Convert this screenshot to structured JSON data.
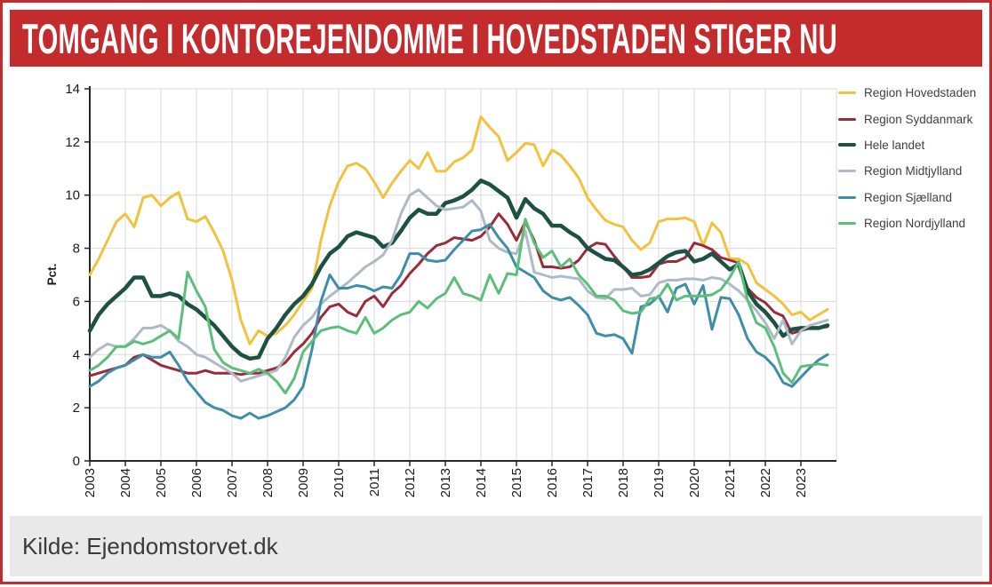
{
  "banner": {
    "title": "TOMGANG I KONTOREJENDOMME I HOVEDSTADEN STIGER NU"
  },
  "source": {
    "label": "Kilde: Ejendomstorvet.dk"
  },
  "colors": {
    "banner_red": "#C32B2D",
    "frame_border": "#C32B2D",
    "axis": "#262626",
    "grid": "#DADADA",
    "source_bar_bg": "#E9E9E9"
  },
  "chart_data": {
    "type": "line",
    "title": "",
    "xlabel": "",
    "ylabel": "Pct.",
    "ylim": [
      0,
      14
    ],
    "y_ticks": [
      0,
      2,
      4,
      6,
      8,
      10,
      12,
      14
    ],
    "grid": true,
    "legend_position": "right",
    "x_start": 2003,
    "x_step": 0.25,
    "x_end": 2023.75,
    "x_tick_years": [
      "2003",
      "2004",
      "2005",
      "2006",
      "2007",
      "2008",
      "2009",
      "2010",
      "2011",
      "2012",
      "2013",
      "2014",
      "2015",
      "2016",
      "2017",
      "2018",
      "2019",
      "2020",
      "2021",
      "2022",
      "2023"
    ],
    "series": [
      {
        "name": "Region Hovedstaden",
        "color": "#F2C23E",
        "width": 3,
        "values": [
          7.0,
          7.6,
          8.3,
          9.0,
          9.3,
          8.8,
          9.9,
          10.0,
          9.6,
          9.9,
          10.1,
          9.1,
          9.0,
          9.2,
          8.6,
          7.9,
          6.8,
          5.3,
          4.4,
          4.9,
          4.7,
          4.8,
          5.1,
          5.5,
          6.0,
          6.5,
          8.3,
          9.6,
          10.5,
          11.1,
          11.2,
          11.0,
          10.5,
          9.9,
          10.45,
          10.9,
          11.3,
          11.0,
          11.6,
          10.9,
          10.9,
          11.25,
          11.4,
          11.7,
          12.95,
          12.55,
          12.2,
          11.3,
          11.6,
          11.95,
          11.9,
          11.1,
          11.7,
          11.5,
          11.1,
          10.65,
          9.9,
          9.45,
          9.05,
          8.9,
          8.8,
          8.3,
          7.95,
          8.2,
          9.0,
          9.1,
          9.1,
          9.15,
          9.0,
          8.1,
          8.95,
          8.6,
          7.6,
          7.6,
          7.4,
          6.7,
          6.45,
          6.2,
          5.9,
          5.5,
          5.6,
          5.3,
          5.5,
          5.7
        ]
      },
      {
        "name": "Region Syddanmark",
        "color": "#992B3B",
        "width": 3,
        "values": [
          3.2,
          3.3,
          3.4,
          3.5,
          3.6,
          3.9,
          4.0,
          3.8,
          3.6,
          3.5,
          3.4,
          3.3,
          3.3,
          3.4,
          3.3,
          3.3,
          3.3,
          3.25,
          3.3,
          3.3,
          3.4,
          3.5,
          3.7,
          4.1,
          4.4,
          4.8,
          5.4,
          5.8,
          5.9,
          5.6,
          5.45,
          6.0,
          6.2,
          5.8,
          6.3,
          6.6,
          7.05,
          7.4,
          7.8,
          8.1,
          8.2,
          8.4,
          8.35,
          8.3,
          8.45,
          8.8,
          9.3,
          8.9,
          8.3,
          9.0,
          8.3,
          7.3,
          7.3,
          7.25,
          7.3,
          7.55,
          8.0,
          8.2,
          8.15,
          7.7,
          7.3,
          6.9,
          6.9,
          6.95,
          7.4,
          7.5,
          7.5,
          7.65,
          8.2,
          8.1,
          7.95,
          7.65,
          7.55,
          7.45,
          6.5,
          6.15,
          5.95,
          5.6,
          5.45,
          4.8,
          4.9,
          5.0,
          5.0,
          5.05
        ]
      },
      {
        "name": "Hele landet",
        "color": "#1C5143",
        "width": 4.5,
        "values": [
          4.9,
          5.5,
          5.9,
          6.2,
          6.5,
          6.9,
          6.9,
          6.2,
          6.2,
          6.3,
          6.2,
          5.9,
          5.7,
          5.4,
          5.1,
          4.7,
          4.3,
          4.0,
          3.85,
          3.9,
          4.6,
          5.0,
          5.5,
          5.9,
          6.2,
          6.65,
          7.3,
          7.8,
          8.05,
          8.45,
          8.6,
          8.5,
          8.4,
          8.05,
          8.2,
          8.65,
          9.15,
          9.45,
          9.3,
          9.3,
          9.7,
          9.8,
          9.95,
          10.2,
          10.55,
          10.4,
          10.15,
          9.9,
          9.15,
          9.85,
          9.5,
          9.3,
          8.85,
          8.85,
          8.6,
          8.4,
          8.0,
          7.8,
          7.6,
          7.55,
          7.3,
          7.0,
          7.05,
          7.2,
          7.45,
          7.7,
          7.85,
          7.9,
          7.5,
          7.6,
          7.8,
          7.5,
          7.2,
          7.4,
          6.4,
          5.9,
          5.6,
          5.2,
          4.7,
          4.95,
          5.0,
          5.0,
          5.0,
          5.1
        ]
      },
      {
        "name": "Region Midtjylland",
        "color": "#AFBAC6",
        "width": 3,
        "values": [
          3.9,
          4.2,
          4.4,
          4.3,
          4.3,
          4.6,
          5.0,
          5.0,
          5.1,
          4.9,
          4.5,
          4.3,
          4.0,
          3.9,
          3.7,
          3.5,
          3.3,
          3.0,
          3.1,
          3.2,
          3.3,
          3.4,
          3.9,
          4.65,
          5.1,
          5.4,
          5.9,
          6.2,
          6.45,
          6.7,
          7.0,
          7.3,
          7.5,
          7.75,
          8.3,
          9.3,
          10.0,
          10.2,
          9.9,
          9.6,
          9.45,
          9.5,
          9.55,
          9.8,
          9.4,
          8.3,
          8.0,
          7.85,
          7.8,
          8.65,
          7.1,
          7.0,
          6.9,
          6.95,
          6.9,
          6.85,
          6.4,
          6.15,
          6.1,
          6.45,
          6.45,
          6.5,
          6.2,
          6.25,
          6.7,
          6.8,
          6.8,
          6.85,
          6.85,
          6.8,
          6.9,
          6.85,
          6.65,
          6.4,
          6.05,
          5.65,
          5.2,
          4.6,
          5.3,
          4.4,
          4.9,
          5.1,
          5.2,
          5.3
        ]
      },
      {
        "name": "Region Sjælland",
        "color": "#3F8EA9",
        "width": 3,
        "values": [
          2.8,
          3.0,
          3.3,
          3.5,
          3.6,
          3.8,
          4.0,
          3.9,
          3.9,
          4.1,
          3.6,
          3.0,
          2.6,
          2.2,
          2.0,
          1.9,
          1.7,
          1.6,
          1.8,
          1.6,
          1.7,
          1.85,
          2.0,
          2.3,
          2.8,
          4.2,
          6.0,
          7.0,
          6.5,
          6.5,
          6.6,
          6.55,
          6.4,
          6.55,
          6.5,
          7.0,
          7.8,
          7.8,
          7.55,
          7.5,
          7.55,
          7.95,
          8.3,
          8.65,
          8.7,
          8.9,
          8.4,
          8.0,
          7.3,
          7.1,
          6.9,
          6.4,
          6.15,
          6.05,
          6.15,
          5.85,
          5.5,
          4.8,
          4.7,
          4.75,
          4.6,
          4.05,
          5.8,
          5.9,
          6.2,
          5.6,
          6.5,
          6.65,
          5.9,
          6.6,
          4.95,
          6.15,
          6.1,
          5.5,
          4.6,
          4.1,
          3.9,
          3.55,
          2.95,
          2.8,
          3.15,
          3.5,
          3.8,
          4.0
        ]
      },
      {
        "name": "Region Nordjylland",
        "color": "#5CBE7B",
        "width": 3,
        "values": [
          3.4,
          3.6,
          3.9,
          4.3,
          4.3,
          4.5,
          4.4,
          4.5,
          4.7,
          4.9,
          4.6,
          7.1,
          6.4,
          5.8,
          4.2,
          3.7,
          3.5,
          3.4,
          3.3,
          3.45,
          3.3,
          3.0,
          2.55,
          3.1,
          4.1,
          4.5,
          4.9,
          5.0,
          5.05,
          4.9,
          4.8,
          5.4,
          4.8,
          5.0,
          5.3,
          5.5,
          5.6,
          6.0,
          5.75,
          6.1,
          6.3,
          6.9,
          6.3,
          6.2,
          6.05,
          7.0,
          6.3,
          7.05,
          7.0,
          9.1,
          8.2,
          7.65,
          7.9,
          7.3,
          7.6,
          7.0,
          6.65,
          6.2,
          6.2,
          6.05,
          5.65,
          5.55,
          5.6,
          6.1,
          6.15,
          6.65,
          6.05,
          6.2,
          6.2,
          6.2,
          6.25,
          6.45,
          6.9,
          7.5,
          6.05,
          5.2,
          5.0,
          4.3,
          3.3,
          2.95,
          3.55,
          3.6,
          3.65,
          3.6
        ]
      }
    ]
  }
}
